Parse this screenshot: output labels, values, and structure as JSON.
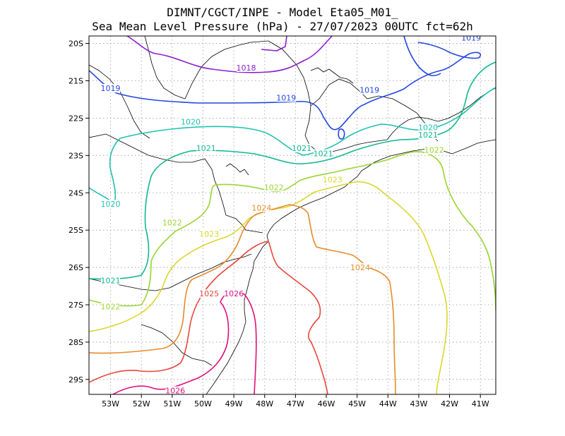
{
  "header": {
    "line1": "DIMNT/CGCT/INPE -  Model Eta05_M01_",
    "line2": "Sea Mean Level Pressure (hPa) - 27/07/2023 00UTC fct=62h"
  },
  "map": {
    "lon_range": [
      -53.7,
      -40.5
    ],
    "lat_range": [
      -29.4,
      -19.8
    ],
    "x_ticks": [
      {
        "value": -53,
        "label": "53W"
      },
      {
        "value": -52,
        "label": "52W"
      },
      {
        "value": -51,
        "label": "51W"
      },
      {
        "value": -50,
        "label": "50W"
      },
      {
        "value": -49,
        "label": "49W"
      },
      {
        "value": -48,
        "label": "48W"
      },
      {
        "value": -47,
        "label": "47W"
      },
      {
        "value": -46,
        "label": "46W"
      },
      {
        "value": -45,
        "label": "45W"
      },
      {
        "value": -44,
        "label": "44W"
      },
      {
        "value": -43,
        "label": "43W"
      },
      {
        "value": -42,
        "label": "42W"
      },
      {
        "value": -41,
        "label": "41W"
      }
    ],
    "y_ticks": [
      {
        "value": -20,
        "label": "20S"
      },
      {
        "value": -21,
        "label": "21S"
      },
      {
        "value": -22,
        "label": "22S"
      },
      {
        "value": -23,
        "label": "23S"
      },
      {
        "value": -24,
        "label": "24S"
      },
      {
        "value": -25,
        "label": "25S"
      },
      {
        "value": -26,
        "label": "26S"
      },
      {
        "value": -27,
        "label": "27S"
      },
      {
        "value": -28,
        "label": "28S"
      },
      {
        "value": -29,
        "label": "29S"
      }
    ],
    "grid": "dotted",
    "contour_colors": {
      "1018": "#8c1fd0",
      "1019": "#2446e0",
      "1020": "#1ec1b0",
      "1021": "#10b890",
      "1022": "#9ad431",
      "1023": "#dcd62c",
      "1024": "#e88a2a",
      "1025": "#e8463c",
      "1026": "#e0107c"
    },
    "contour_labels": [
      {
        "text": "1018",
        "level": "1018",
        "lon": -48.6,
        "lat": -20.65
      },
      {
        "text": "1019",
        "level": "1019",
        "lon": -41.3,
        "lat": -19.85
      },
      {
        "text": "1019",
        "level": "1019",
        "lon": -53.0,
        "lat": -21.2
      },
      {
        "text": "1019",
        "level": "1019",
        "lon": -47.3,
        "lat": -21.45
      },
      {
        "text": "1019",
        "level": "1019",
        "lon": -44.6,
        "lat": -21.25
      },
      {
        "text": "1020",
        "level": "1020",
        "lon": -50.4,
        "lat": -22.1
      },
      {
        "text": "1020",
        "level": "1020",
        "lon": -42.7,
        "lat": -22.25
      },
      {
        "text": "1020",
        "level": "1020",
        "lon": -53.0,
        "lat": -24.3
      },
      {
        "text": "1021",
        "level": "1021",
        "lon": -49.9,
        "lat": -22.8
      },
      {
        "text": "1021",
        "level": "1021",
        "lon": -46.8,
        "lat": -22.8
      },
      {
        "text": "1021",
        "level": "1021",
        "lon": -46.1,
        "lat": -22.95
      },
      {
        "text": "1021",
        "level": "1021",
        "lon": -42.7,
        "lat": -22.45
      },
      {
        "text": "1021",
        "level": "1021",
        "lon": -53.0,
        "lat": -26.35
      },
      {
        "text": "1022",
        "level": "1022",
        "lon": -47.7,
        "lat": -23.85
      },
      {
        "text": "1022",
        "level": "1022",
        "lon": -42.5,
        "lat": -22.85
      },
      {
        "text": "1022",
        "level": "1022",
        "lon": -51.0,
        "lat": -24.8
      },
      {
        "text": "1022",
        "level": "1022",
        "lon": -53.0,
        "lat": -27.05
      },
      {
        "text": "1023",
        "level": "1023",
        "lon": -45.8,
        "lat": -23.65
      },
      {
        "text": "1023",
        "level": "1023",
        "lon": -49.8,
        "lat": -25.1
      },
      {
        "text": "1024",
        "level": "1024",
        "lon": -48.1,
        "lat": -24.4
      },
      {
        "text": "1024",
        "level": "1024",
        "lon": -44.9,
        "lat": -26.0
      },
      {
        "text": "1025",
        "level": "1025",
        "lon": -49.8,
        "lat": -26.7
      },
      {
        "text": "1026",
        "level": "1026",
        "lon": -49.0,
        "lat": -26.7
      },
      {
        "text": "1026",
        "level": "1026",
        "lon": -50.9,
        "lat": -29.3
      }
    ]
  }
}
